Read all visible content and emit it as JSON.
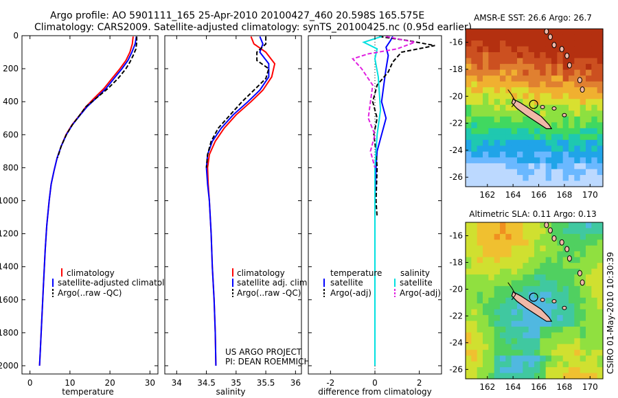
{
  "title_line1": "Argo profile: AO 5901111_165 25-Apr-2010 20100427_460 20.598S 165.575E",
  "title_line2": "Climatology: CARS2009. Satellite-adjusted climatology: synTS_20100425.nc (0.95d earlier)",
  "credit": "CSIRO 01-May-2010 10:30:39",
  "project_line1": "US ARGO PROJECT",
  "project_line2": "PI: DEAN ROEMMICH",
  "colors": {
    "climatology": "#ff0000",
    "satellite": "#0000ff",
    "argo": "#000000",
    "salinity_sat": "#00e0e0",
    "salinity_argo": "#e020e0"
  },
  "chart_data": [
    {
      "id": "temperature",
      "type": "line",
      "xlabel": "temperature",
      "ylabel": "",
      "xlim": [
        -2,
        32
      ],
      "ylim": [
        2050,
        0
      ],
      "xticks": [
        0,
        10,
        20,
        30
      ],
      "yticks": [
        0,
        200,
        400,
        600,
        800,
        1000,
        1200,
        1400,
        1600,
        1800,
        2000
      ],
      "legend": [
        "climatology",
        "satellite-adjusted climatology",
        "Argo(..raw -QC)"
      ],
      "series": [
        {
          "name": "climatology",
          "color": "#ff0000",
          "dash": "",
          "points": [
            [
              25.8,
              5
            ],
            [
              25.6,
              50
            ],
            [
              25.0,
              100
            ],
            [
              24.0,
              150
            ],
            [
              22.5,
              200
            ],
            [
              20.5,
              260
            ],
            [
              18.5,
              320
            ],
            [
              16.0,
              380
            ],
            [
              14.0,
              430
            ],
            [
              12.5,
              480
            ],
            [
              10.5,
              540
            ],
            [
              9.0,
              600
            ],
            [
              7.8,
              670
            ],
            [
              6.8,
              740
            ],
            [
              6.0,
              820
            ],
            [
              5.3,
              900
            ],
            [
              4.8,
              1000
            ],
            [
              4.2,
              1150
            ],
            [
              3.8,
              1300
            ],
            [
              3.4,
              1500
            ],
            [
              3.0,
              1700
            ],
            [
              2.6,
              1900
            ],
            [
              2.4,
              2000
            ]
          ]
        },
        {
          "name": "satellite-adjusted climatology",
          "color": "#0000ff",
          "dash": "",
          "points": [
            [
              26.6,
              5
            ],
            [
              26.3,
              50
            ],
            [
              25.5,
              100
            ],
            [
              24.5,
              150
            ],
            [
              23.0,
              200
            ],
            [
              21.0,
              260
            ],
            [
              19.0,
              320
            ],
            [
              16.5,
              380
            ],
            [
              14.3,
              430
            ],
            [
              12.6,
              480
            ],
            [
              10.6,
              540
            ],
            [
              9.1,
              600
            ],
            [
              7.8,
              670
            ],
            [
              6.8,
              740
            ],
            [
              6.0,
              820
            ],
            [
              5.3,
              900
            ],
            [
              4.8,
              1000
            ],
            [
              4.2,
              1150
            ],
            [
              3.8,
              1300
            ],
            [
              3.4,
              1500
            ],
            [
              3.0,
              1700
            ],
            [
              2.6,
              1900
            ],
            [
              2.4,
              2000
            ]
          ]
        },
        {
          "name": "Argo(..raw -QC)",
          "color": "#000000",
          "dash": "6,3",
          "points": [
            [
              26.7,
              5
            ],
            [
              26.7,
              40
            ],
            [
              26.5,
              80
            ],
            [
              25.8,
              120
            ],
            [
              25.0,
              160
            ],
            [
              24.0,
              200
            ],
            [
              22.0,
              260
            ],
            [
              19.5,
              320
            ],
            [
              16.5,
              380
            ],
            [
              14.0,
              430
            ],
            [
              12.5,
              480
            ],
            [
              10.6,
              540
            ],
            [
              9.1,
              600
            ],
            [
              7.8,
              670
            ],
            [
              6.9,
              740
            ]
          ]
        }
      ]
    },
    {
      "id": "salinity",
      "type": "line",
      "xlabel": "salinity",
      "ylabel": "",
      "xlim": [
        33.8,
        36.1
      ],
      "ylim": [
        2050,
        0
      ],
      "xticks": [
        34,
        34.5,
        35,
        35.5,
        36
      ],
      "yticks": [],
      "legend": [
        "climatology",
        "satellite adj. clim.",
        "Argo(..raw -QC)"
      ],
      "series": [
        {
          "name": "climatology",
          "color": "#ff0000",
          "dash": "",
          "points": [
            [
              35.25,
              5
            ],
            [
              35.3,
              50
            ],
            [
              35.5,
              100
            ],
            [
              35.65,
              170
            ],
            [
              35.6,
              250
            ],
            [
              35.45,
              330
            ],
            [
              35.25,
              400
            ],
            [
              35.0,
              480
            ],
            [
              34.8,
              560
            ],
            [
              34.65,
              640
            ],
            [
              34.55,
              720
            ],
            [
              34.52,
              800
            ],
            [
              34.53,
              900
            ],
            [
              34.55,
              1000
            ],
            [
              34.58,
              1200
            ],
            [
              34.6,
              1400
            ],
            [
              34.63,
              1600
            ],
            [
              34.65,
              1800
            ],
            [
              34.66,
              2000
            ]
          ]
        },
        {
          "name": "satellite adj. clim.",
          "color": "#0000ff",
          "dash": "",
          "points": [
            [
              35.4,
              5
            ],
            [
              35.45,
              50
            ],
            [
              35.4,
              100
            ],
            [
              35.55,
              170
            ],
            [
              35.55,
              250
            ],
            [
              35.4,
              330
            ],
            [
              35.2,
              400
            ],
            [
              34.95,
              480
            ],
            [
              34.75,
              560
            ],
            [
              34.6,
              640
            ],
            [
              34.52,
              720
            ],
            [
              34.5,
              800
            ],
            [
              34.52,
              900
            ],
            [
              34.55,
              1000
            ],
            [
              34.58,
              1200
            ],
            [
              34.6,
              1400
            ],
            [
              34.63,
              1600
            ],
            [
              34.65,
              1800
            ],
            [
              34.66,
              2000
            ]
          ]
        },
        {
          "name": "Argo(..raw -QC)",
          "color": "#000000",
          "dash": "6,3",
          "points": [
            [
              35.5,
              5
            ],
            [
              35.5,
              50
            ],
            [
              35.35,
              100
            ],
            [
              35.35,
              150
            ],
            [
              35.55,
              200
            ],
            [
              35.5,
              260
            ],
            [
              35.3,
              330
            ],
            [
              35.1,
              400
            ],
            [
              34.9,
              480
            ],
            [
              34.7,
              560
            ],
            [
              34.58,
              640
            ],
            [
              34.52,
              720
            ],
            [
              34.5,
              800
            ]
          ]
        }
      ]
    },
    {
      "id": "difference",
      "type": "line",
      "xlabel": "difference from climatology",
      "ylabel": "",
      "xlim": [
        -3,
        3
      ],
      "ylim": [
        2050,
        0
      ],
      "xticks": [
        -2,
        0,
        2
      ],
      "yticks": [],
      "legend_title_left": "temperature",
      "legend_title_right": "salinity",
      "legend_left": [
        "satellite",
        "Argo(-adj)"
      ],
      "legend_right": [
        "satellite",
        "Argo(-adj)"
      ],
      "series": [
        {
          "name": "temperature satellite",
          "color": "#0000ff",
          "dash": "",
          "points": [
            [
              0.8,
              5
            ],
            [
              0.7,
              30
            ],
            [
              0.5,
              70
            ],
            [
              0.6,
              120
            ],
            [
              0.5,
              200
            ],
            [
              0.4,
              300
            ],
            [
              0.3,
              400
            ],
            [
              0.5,
              500
            ],
            [
              0.3,
              600
            ],
            [
              0.1,
              700
            ],
            [
              0.05,
              800
            ],
            [
              0.0,
              1000
            ],
            [
              0.0,
              1500
            ],
            [
              0.0,
              2000
            ]
          ]
        },
        {
          "name": "temperature Argo(-adj)",
          "color": "#000000",
          "dash": "6,3",
          "points": [
            [
              0.2,
              5
            ],
            [
              1.5,
              30
            ],
            [
              2.7,
              60
            ],
            [
              1.2,
              100
            ],
            [
              0.8,
              160
            ],
            [
              0.6,
              220
            ],
            [
              0.1,
              300
            ],
            [
              -0.1,
              400
            ],
            [
              0.1,
              500
            ],
            [
              -0.05,
              600
            ],
            [
              0.05,
              700
            ],
            [
              0.1,
              800
            ],
            [
              0.05,
              1000
            ],
            [
              0.1,
              1100
            ]
          ]
        },
        {
          "name": "salinity satellite",
          "color": "#00e0e0",
          "dash": "",
          "points": [
            [
              0.3,
              5
            ],
            [
              -0.5,
              40
            ],
            [
              0.1,
              80
            ],
            [
              0.0,
              140
            ],
            [
              0.15,
              250
            ],
            [
              0.2,
              350
            ],
            [
              0.25,
              450
            ],
            [
              0.1,
              600
            ],
            [
              0.0,
              800
            ],
            [
              0.0,
              1000
            ],
            [
              0.0,
              1500
            ],
            [
              0.0,
              2000
            ]
          ]
        },
        {
          "name": "salinity Argo(-adj)",
          "color": "#e020e0",
          "dash": "6,3",
          "points": [
            [
              0.5,
              5
            ],
            [
              1.8,
              40
            ],
            [
              1.0,
              80
            ],
            [
              -0.3,
              110
            ],
            [
              -1.0,
              140
            ],
            [
              -0.6,
              200
            ],
            [
              -0.1,
              300
            ],
            [
              -0.2,
              400
            ],
            [
              -0.3,
              500
            ],
            [
              0.0,
              600
            ],
            [
              -0.2,
              700
            ],
            [
              0.0,
              800
            ]
          ]
        }
      ]
    },
    {
      "id": "sst_map",
      "type": "heatmap",
      "title": "AMSR-E SST: 26.6  Argo: 26.7",
      "xlim": [
        160.3,
        171.0
      ],
      "ylim": [
        -26.7,
        -15.0
      ],
      "xticks": [
        162,
        164,
        166,
        168,
        170
      ],
      "yticks": [
        -16,
        -18,
        -20,
        -22,
        -24,
        -26
      ],
      "argo_position": [
        165.6,
        -20.6
      ],
      "palette": [
        "#bcd9ff",
        "#6ab8ff",
        "#20a4e8",
        "#1fc8b0",
        "#40d860",
        "#8de040",
        "#d8e030",
        "#f0b030",
        "#e08030",
        "#cc5020",
        "#b43010"
      ]
    },
    {
      "id": "sla_map",
      "type": "heatmap",
      "title": "Altimetric SLA: 0.11  Argo: 0.13",
      "xlim": [
        160.3,
        171.0
      ],
      "ylim": [
        -26.7,
        -15.0
      ],
      "xticks": [
        162,
        164,
        166,
        168,
        170
      ],
      "yticks": [
        -16,
        -18,
        -20,
        -22,
        -24,
        -26
      ],
      "argo_position": [
        165.6,
        -20.6
      ],
      "palette": [
        "#50b8e0",
        "#40c8a0",
        "#50d060",
        "#90e040",
        "#d0e030",
        "#f0c030",
        "#f09020"
      ]
    }
  ]
}
